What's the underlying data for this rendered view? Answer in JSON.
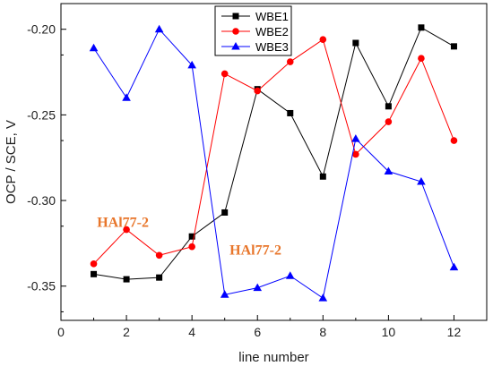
{
  "chart_data": {
    "type": "line",
    "xlabel": "line number",
    "ylabel": "OCP / SCE, V",
    "xlim": [
      0,
      13
    ],
    "ylim": [
      -0.37,
      -0.185
    ],
    "xticks": [
      0,
      2,
      4,
      6,
      8,
      10,
      12
    ],
    "yticks": [
      -0.35,
      -0.3,
      -0.25,
      -0.2
    ],
    "xtick_labels": [
      "0",
      "2",
      "4",
      "6",
      "8",
      "10",
      "12"
    ],
    "ytick_labels": [
      "-0.35",
      "-0.30",
      "-0.25",
      "-0.20"
    ],
    "grid": false,
    "legend_position": "top-center",
    "x": [
      1,
      2,
      3,
      4,
      5,
      6,
      7,
      8,
      9,
      10,
      11,
      12
    ],
    "series": [
      {
        "name": "WBE1",
        "color": "#000000",
        "marker": "square",
        "values": [
          -0.343,
          -0.346,
          -0.345,
          -0.321,
          -0.307,
          -0.235,
          -0.249,
          -0.286,
          -0.208,
          -0.245,
          -0.199,
          -0.21
        ]
      },
      {
        "name": "WBE2",
        "color": "#ff0000",
        "marker": "circle",
        "values": [
          -0.337,
          -0.317,
          -0.332,
          -0.327,
          -0.226,
          -0.236,
          -0.219,
          -0.206,
          -0.273,
          -0.254,
          -0.217,
          -0.265
        ]
      },
      {
        "name": "WBE3",
        "color": "#0000ff",
        "marker": "triangle",
        "values": [
          -0.211,
          -0.24,
          -0.2,
          -0.221,
          -0.355,
          -0.351,
          -0.344,
          -0.357,
          -0.264,
          -0.283,
          -0.289,
          -0.339
        ]
      }
    ],
    "annotations": [
      {
        "text": "HAl77-2",
        "x": 1.1,
        "y": -0.3155,
        "color": "#e8762b"
      },
      {
        "text": "HAl77-2",
        "x": 5.15,
        "y": -0.3315,
        "color": "#e8762b"
      }
    ]
  }
}
